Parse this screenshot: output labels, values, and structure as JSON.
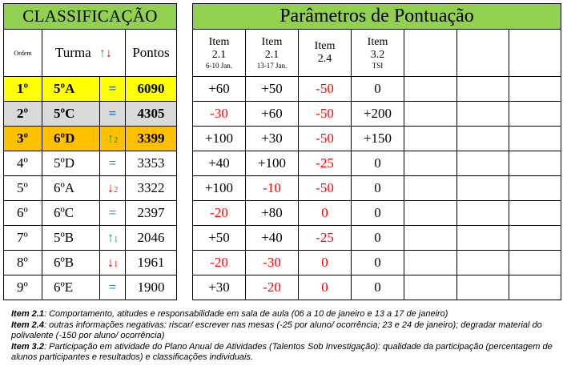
{
  "classificacao": {
    "title": "CLASSIFICAÇÃO",
    "headers": {
      "ordem": "Ordem",
      "turma": "Turma",
      "pontos": "Pontos"
    },
    "header_arrows": {
      "up": "↑",
      "down": "↓"
    },
    "rows": [
      {
        "rank": "1º",
        "turma": "5ºA",
        "trend": "=",
        "trend_sub": "",
        "trend_type": "eq",
        "pontos": "6090"
      },
      {
        "rank": "2º",
        "turma": "5ºC",
        "trend": "=",
        "trend_sub": "",
        "trend_type": "eq",
        "pontos": "4305"
      },
      {
        "rank": "3º",
        "turma": "6ºD",
        "trend": "↑",
        "trend_sub": "2",
        "trend_type": "up",
        "pontos": "3399"
      },
      {
        "rank": "4º",
        "turma": "5ºD",
        "trend": "=",
        "trend_sub": "",
        "trend_type": "eq",
        "pontos": "3353"
      },
      {
        "rank": "5º",
        "turma": "6ºA",
        "trend": "↓",
        "trend_sub": "2",
        "trend_type": "down",
        "pontos": "3322"
      },
      {
        "rank": "6º",
        "turma": "6ºC",
        "trend": "=",
        "trend_sub": "",
        "trend_type": "eq",
        "pontos": "2397"
      },
      {
        "rank": "7º",
        "turma": "5ºB",
        "trend": "↑",
        "trend_sub": "1",
        "trend_type": "up",
        "pontos": "2046"
      },
      {
        "rank": "8º",
        "turma": "6ºB",
        "trend": "↓",
        "trend_sub": "1",
        "trend_type": "down",
        "pontos": "1961"
      },
      {
        "rank": "9º",
        "turma": "6ºE",
        "trend": "=",
        "trend_sub": "",
        "trend_type": "eq",
        "pontos": "1900"
      }
    ]
  },
  "parametros": {
    "title": "Parâmetros de Pontuação",
    "items": [
      {
        "label": "Item",
        "num": "2.1",
        "sub": "6-10 Jan."
      },
      {
        "label": "Item",
        "num": "2.1",
        "sub": "13-17 Jan."
      },
      {
        "label": "Item",
        "num": "2.4",
        "sub": ""
      },
      {
        "label": "Item",
        "num": "3.2",
        "sub": "TSI"
      }
    ],
    "values": [
      [
        "+60",
        "+50",
        "-50",
        "0"
      ],
      [
        "-30",
        "+60",
        "-50",
        "+200"
      ],
      [
        "+100",
        "+30",
        "-50",
        "+150"
      ],
      [
        "+40",
        "+100",
        "-25",
        "0"
      ],
      [
        "+100",
        "-10",
        "-50",
        "0"
      ],
      [
        "-20",
        "+80",
        "0",
        "0"
      ],
      [
        "+50",
        "+40",
        "-25",
        "0"
      ],
      [
        "-20",
        "-30",
        "0",
        "0"
      ],
      [
        "+30",
        "-20",
        "0",
        "0"
      ]
    ],
    "red_zero_cols": [
      2
    ]
  },
  "notes": [
    {
      "label": "Item 2.1",
      "text": ": Comportamento, atitudes e responsabilidade em sala de aula (06 a 10 de janeiro e 13 a 17 de janeiro)"
    },
    {
      "label": "Item 2.4",
      "text": ": outras informações negativas: riscar/ escrever nas mesas (-25 por aluno/ ocorrência; 23 e 24 de janeiro); degradar material do polivalente (-150 por aluno/ ocorrência)"
    },
    {
      "label": "Item 3.2",
      "text": ": Participação em atividade do Plano Anual de Atividades (Talentos Sob Investigação): qualidade da participação (percentagem de alunos participantes e resultados) e classificações individuais."
    }
  ],
  "colors": {
    "title_bg": "#92d050",
    "first_bg": "#ffff00",
    "second_bg": "#d9d9d9",
    "third_bg": "#ffc000",
    "up": "#00b050",
    "down": "#ff0000",
    "eq": "#0070c0",
    "negative": "#ff0000"
  }
}
